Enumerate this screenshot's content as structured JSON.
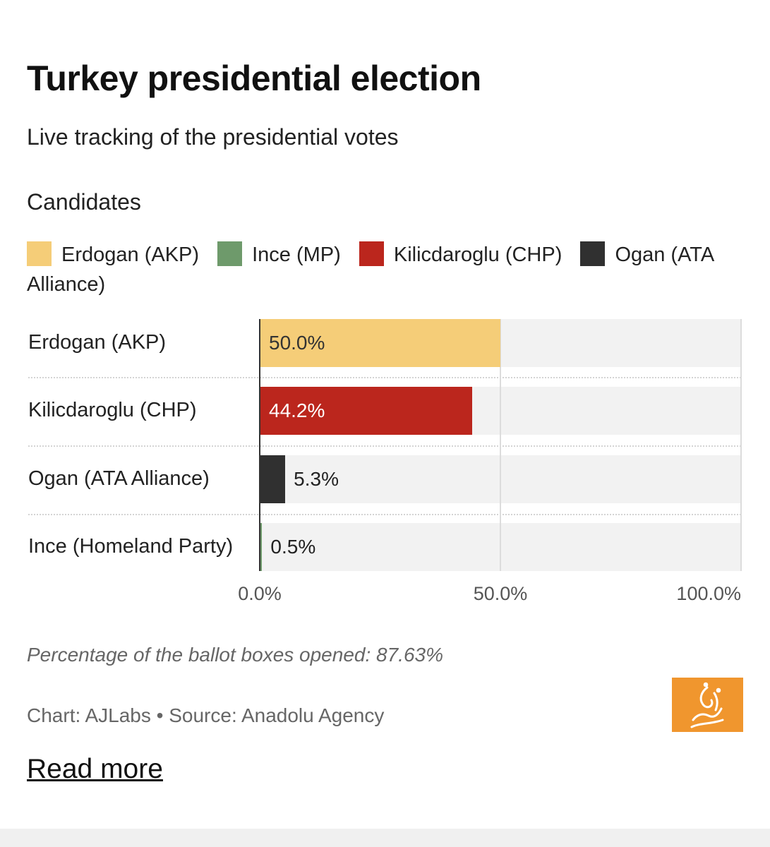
{
  "header": {
    "title": "Turkey presidential election",
    "subtitle": "Live tracking of the presidential votes"
  },
  "legend": {
    "title": "Candidates",
    "items": [
      {
        "label": "Erdogan (AKP)",
        "color": "#f5cd78"
      },
      {
        "label": "Ince (MP)",
        "color": "#6e9a6b"
      },
      {
        "label": "Kilicdaroglu (CHP)",
        "color": "#bb261d"
      },
      {
        "label": "Ogan (ATA Alliance)",
        "color": "#303030"
      }
    ]
  },
  "chart_data": {
    "type": "bar",
    "orientation": "horizontal",
    "categories": [
      "Erdogan (AKP)",
      "Kilicdaroglu (CHP)",
      "Ogan (ATA Alliance)",
      "Ince (Homeland Party)"
    ],
    "values": [
      50.0,
      44.2,
      5.3,
      0.5
    ],
    "value_labels": [
      "50.0%",
      "44.2%",
      "5.3%",
      "0.5%"
    ],
    "colors": [
      "#f5cd78",
      "#bb261d",
      "#303030",
      "#6e9a6b"
    ],
    "label_colors": [
      "#333333",
      "#ffffff",
      "#222222",
      "#222222"
    ],
    "xlim": [
      0,
      100
    ],
    "ticks": [
      0,
      50,
      100
    ],
    "tick_labels": [
      "0.0%",
      "50.0%",
      "100.0%"
    ],
    "grid": true
  },
  "footer": {
    "note": "Percentage of the ballot boxes opened: 87.63%",
    "source": "Chart: AJLabs • Source: Anadolu Agency",
    "read_more": "Read more"
  }
}
